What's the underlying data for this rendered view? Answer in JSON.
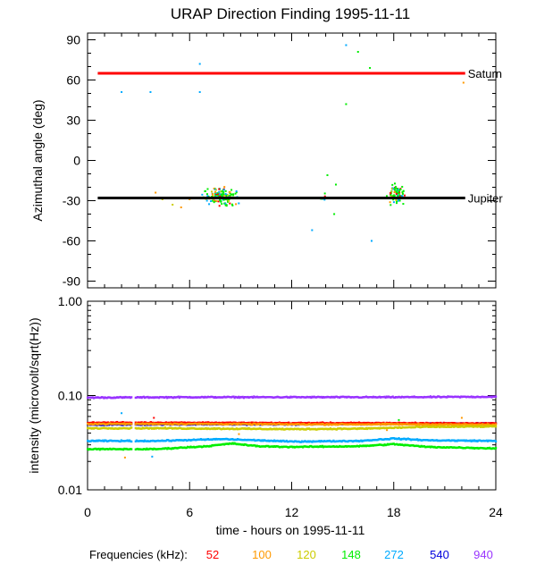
{
  "chart_data": [
    {
      "type": "scatter",
      "title": "URAP Direction Finding  1995-11-11",
      "ylabel": "Azimuthal angle (deg)",
      "xlim": [
        0,
        24
      ],
      "ylim": [
        -95,
        95
      ],
      "yticks": [
        90,
        60,
        30,
        0,
        -30,
        -60,
        -90
      ],
      "ytick_labels": [
        "90",
        "60",
        "30",
        "0",
        "-30",
        "-60",
        "-90"
      ],
      "reference_lines": [
        {
          "name": "Saturn",
          "label": "Saturn",
          "y": 65,
          "x_start": 0.6,
          "x_end": 22.2,
          "color": "#ff0000"
        },
        {
          "name": "Jupiter",
          "label": "Jupiter",
          "y": -28,
          "x_start": 0.6,
          "x_end": 22.2,
          "color": "#000000"
        }
      ],
      "clusters": [
        {
          "x_center": 7.9,
          "x_spread": 1.3,
          "y_center": -27,
          "y_spread": 9,
          "count": 150
        },
        {
          "x_center": 18.2,
          "x_spread": 0.7,
          "y_center": -25,
          "y_spread": 10,
          "count": 85
        },
        {
          "x_center": 13.9,
          "x_spread": 0.3,
          "y_center": -28,
          "y_spread": 4,
          "count": 8
        }
      ],
      "points": [
        {
          "x": 2.0,
          "y": 51,
          "freq": 272
        },
        {
          "x": 3.7,
          "y": 51,
          "freq": 272
        },
        {
          "x": 6.6,
          "y": 72,
          "freq": 272
        },
        {
          "x": 6.6,
          "y": 51,
          "freq": 272
        },
        {
          "x": 15.2,
          "y": 86,
          "freq": 272
        },
        {
          "x": 15.2,
          "y": 42,
          "freq": 148
        },
        {
          "x": 15.9,
          "y": 81,
          "freq": 148
        },
        {
          "x": 16.6,
          "y": 69,
          "freq": 148
        },
        {
          "x": 22.1,
          "y": 58,
          "freq": 100
        },
        {
          "x": 13.2,
          "y": -52,
          "freq": 272
        },
        {
          "x": 16.7,
          "y": -60,
          "freq": 272
        },
        {
          "x": 14.5,
          "y": -40,
          "freq": 148
        },
        {
          "x": 14.1,
          "y": -11,
          "freq": 148
        },
        {
          "x": 14.6,
          "y": -18,
          "freq": 148
        },
        {
          "x": 4.0,
          "y": -24,
          "freq": 100
        },
        {
          "x": 4.4,
          "y": -29,
          "freq": 120
        },
        {
          "x": 5.0,
          "y": -33,
          "freq": 120
        },
        {
          "x": 5.5,
          "y": -35,
          "freq": 100
        },
        {
          "x": 6.0,
          "y": -29,
          "freq": 100
        }
      ]
    },
    {
      "type": "line",
      "xlabel": "time - hours on 1995-11-11",
      "ylabel": "intensity (microvolt/sqrt(Hz))",
      "xlim": [
        0,
        24
      ],
      "ylim": [
        0.01,
        1.0
      ],
      "yscale": "log",
      "xticks": [
        0,
        6,
        12,
        18,
        24
      ],
      "xtick_labels": [
        "0",
        "6",
        "12",
        "18",
        "24"
      ],
      "yticks": [
        1.0,
        0.1,
        0.01
      ],
      "ytick_labels": [
        "1.00",
        "0.10",
        "0.01"
      ],
      "gap": [
        2.6,
        2.8
      ],
      "series": [
        {
          "name": "940",
          "color": "#9933ff",
          "x": [
            0.0,
            6.0,
            12.0,
            18.0,
            24.0
          ],
          "values": [
            0.095,
            0.096,
            0.096,
            0.096,
            0.097
          ]
        },
        {
          "name": "540",
          "color": "#0000dd",
          "x": [
            0.0,
            6.0,
            12.0,
            18.0,
            24.0
          ],
          "values": [
            0.049,
            0.0495,
            0.0495,
            0.05,
            0.0505
          ]
        },
        {
          "name": "52",
          "color": "#ff0000",
          "x": [
            0.0,
            6.0,
            12.0,
            18.0,
            24.0
          ],
          "values": [
            0.0515,
            0.0515,
            0.051,
            0.051,
            0.0505
          ]
        },
        {
          "name": "100",
          "color": "#ff9900",
          "x": [
            0.0,
            6.0,
            12.0,
            18.0,
            24.0
          ],
          "values": [
            0.05,
            0.05,
            0.0495,
            0.0495,
            0.049
          ]
        },
        {
          "name": "120",
          "color": "#cccc00",
          "x": [
            0.0,
            4.0,
            8.0,
            12.0,
            16.0,
            18.0,
            20.0,
            24.0
          ],
          "values": [
            0.045,
            0.045,
            0.0445,
            0.044,
            0.0445,
            0.0455,
            0.0465,
            0.047
          ]
        },
        {
          "name": "272",
          "color": "#00aaff",
          "x": [
            0.0,
            4.0,
            8.0,
            12.0,
            16.0,
            18.0,
            20.0,
            24.0
          ],
          "values": [
            0.033,
            0.033,
            0.0345,
            0.0325,
            0.033,
            0.035,
            0.0335,
            0.033
          ]
        },
        {
          "name": "148",
          "color": "#00ee00",
          "x": [
            0.0,
            4.0,
            7.0,
            8.5,
            10.0,
            12.0,
            16.0,
            18.0,
            20.0,
            24.0
          ],
          "values": [
            0.027,
            0.027,
            0.029,
            0.031,
            0.029,
            0.0285,
            0.029,
            0.0305,
            0.0285,
            0.0275
          ]
        }
      ],
      "outliers": [
        {
          "x": 2.2,
          "y": 0.022,
          "freq": 100
        },
        {
          "x": 3.8,
          "y": 0.0225,
          "freq": 272
        },
        {
          "x": 2.0,
          "y": 0.065,
          "freq": 272
        },
        {
          "x": 3.9,
          "y": 0.058,
          "freq": 52
        },
        {
          "x": 22.0,
          "y": 0.058,
          "freq": 100
        },
        {
          "x": 18.3,
          "y": 0.055,
          "freq": 148
        },
        {
          "x": 8.9,
          "y": 0.039,
          "freq": 100
        },
        {
          "x": 17.6,
          "y": 0.043,
          "freq": 100
        }
      ]
    }
  ],
  "legend": {
    "label": "Frequencies (kHz):",
    "items": [
      {
        "value": "52",
        "color": "#ff0000"
      },
      {
        "value": "100",
        "color": "#ff9900"
      },
      {
        "value": "120",
        "color": "#cccc00"
      },
      {
        "value": "148",
        "color": "#00ee00"
      },
      {
        "value": "272",
        "color": "#00aaff"
      },
      {
        "value": "540",
        "color": "#0000dd"
      },
      {
        "value": "940",
        "color": "#9933ff"
      }
    ]
  }
}
